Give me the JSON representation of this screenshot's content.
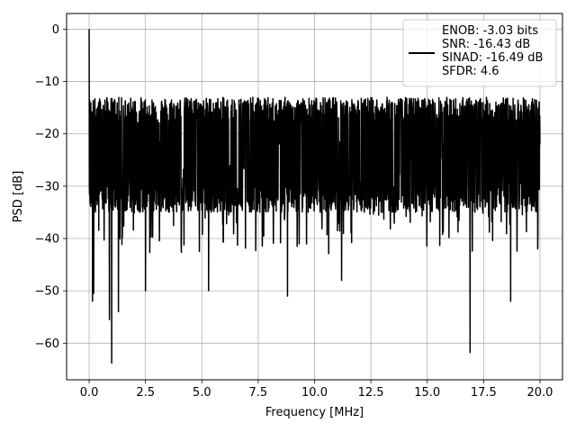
{
  "chart_data": {
    "type": "line",
    "title": "",
    "xlabel": "Frequency [MHz]",
    "ylabel": "PSD [dB]",
    "xlim": [
      -1.0,
      21.0
    ],
    "ylim": [
      -67.0,
      3.0
    ],
    "xticks": [
      0.0,
      2.5,
      5.0,
      7.5,
      10.0,
      12.5,
      15.0,
      17.5,
      20.0
    ],
    "xtick_labels": [
      "0.0",
      "2.5",
      "5.0",
      "7.5",
      "10.0",
      "12.5",
      "15.0",
      "17.5",
      "20.0"
    ],
    "yticks": [
      0,
      -10,
      -20,
      -30,
      -40,
      -50,
      -60
    ],
    "ytick_labels": [
      "0",
      "−10",
      "−20",
      "−30",
      "−40",
      "−50",
      "−60"
    ],
    "grid": true,
    "legend_position": "top-right",
    "series": [
      {
        "name": "ENOB: -3.03 bits\nSNR: -16.43 dB\nSINAD: -16.49 dB\nSFDR: 4.6",
        "legend_lines": [
          "ENOB: -3.03 bits",
          "SNR: -16.43 dB",
          "SINAD: -16.49 dB",
          "SFDR: 4.6"
        ],
        "color": "#000000",
        "x_range": [
          0.0,
          20.0
        ],
        "baseline_mean_db": -25,
        "typical_upper_db": -17,
        "typical_lower_db": -33,
        "peaks": [
          {
            "x": 0.0,
            "y": 0.0
          },
          {
            "x": 0.05,
            "y": -25.5
          },
          {
            "x": 0.15,
            "y": -52.0
          },
          {
            "x": 0.2,
            "y": -50.5
          },
          {
            "x": 0.9,
            "y": -55.5
          },
          {
            "x": 1.0,
            "y": -63.8
          },
          {
            "x": 1.3,
            "y": -54.0
          },
          {
            "x": 2.5,
            "y": -50.0
          },
          {
            "x": 5.3,
            "y": -50.0
          },
          {
            "x": 8.8,
            "y": -51.0
          },
          {
            "x": 11.2,
            "y": -48.0
          },
          {
            "x": 16.9,
            "y": -61.8
          },
          {
            "x": 18.7,
            "y": -52.0
          },
          {
            "x": 19.9,
            "y": -42.0
          },
          {
            "x": 20.0,
            "y": -22.0
          }
        ]
      }
    ]
  }
}
